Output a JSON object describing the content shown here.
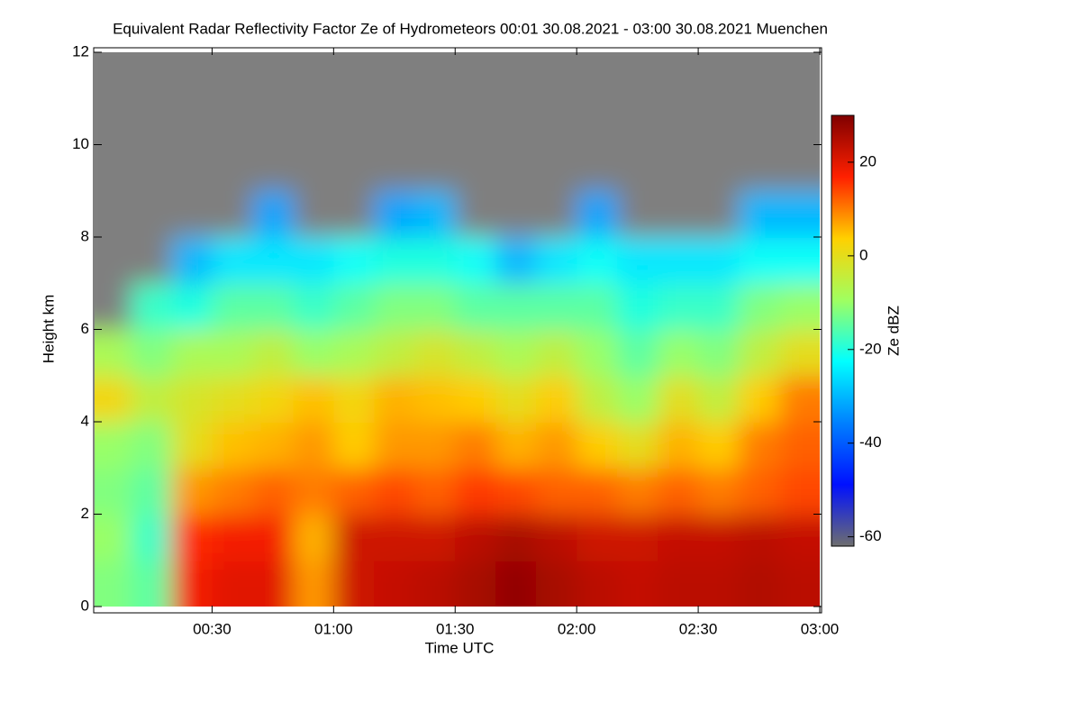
{
  "chart_data": {
    "type": "heatmap",
    "title": "Equivalent Radar Reflectivity Factor Ze of Hydrometeors   00:01 30.08.2021 - 03:00 30.08.2021 Muenchen",
    "x_label": "Time UTC",
    "y_label": "Height km",
    "colorbar_label": "Ze dBZ",
    "xlim": [
      1,
      180
    ],
    "xticks": [
      {
        "value": 30,
        "label": "00:30"
      },
      {
        "value": 60,
        "label": "01:00"
      },
      {
        "value": 90,
        "label": "01:30"
      },
      {
        "value": 120,
        "label": "02:00"
      },
      {
        "value": 150,
        "label": "02:30"
      },
      {
        "value": 180,
        "label": "03:00"
      }
    ],
    "ylim": [
      0,
      12
    ],
    "yticks": [
      0,
      2,
      4,
      6,
      8,
      10,
      12
    ],
    "clim": [
      -62,
      30
    ],
    "cticks": [
      -60,
      -40,
      -20,
      0,
      20
    ],
    "colormap": [
      "#6e6e6e",
      "#0010ff",
      "#0080ff",
      "#00ffff",
      "#a0ff60",
      "#ffd000",
      "#ff2000",
      "#800000"
    ],
    "missing_color": "#7f7f7f",
    "x": [
      5,
      15,
      25,
      35,
      45,
      55,
      65,
      75,
      85,
      95,
      105,
      115,
      125,
      135,
      145,
      155,
      165,
      175
    ],
    "y": [
      0.5,
      1.5,
      2.5,
      3.5,
      4.5,
      5.5,
      6.5,
      7.5,
      8.5,
      9.5,
      10.5,
      11.5
    ],
    "z": [
      [
        -12,
        -15,
        18,
        20,
        20,
        8,
        22,
        23,
        24,
        26,
        28,
        26,
        24,
        23,
        24,
        24,
        25,
        24
      ],
      [
        -10,
        -18,
        16,
        18,
        18,
        6,
        22,
        22,
        22,
        24,
        26,
        24,
        22,
        22,
        23,
        23,
        24,
        23
      ],
      [
        -12,
        -15,
        8,
        10,
        12,
        10,
        12,
        14,
        12,
        15,
        14,
        12,
        12,
        10,
        12,
        10,
        12,
        14
      ],
      [
        -10,
        -12,
        0,
        5,
        6,
        8,
        4,
        8,
        8,
        10,
        6,
        8,
        4,
        0,
        6,
        4,
        10,
        12
      ],
      [
        2,
        -5,
        -2,
        0,
        2,
        5,
        2,
        6,
        5,
        4,
        0,
        4,
        -5,
        -10,
        0,
        -5,
        4,
        10
      ],
      [
        -8,
        -12,
        -8,
        -8,
        -5,
        -10,
        -8,
        -5,
        -2,
        -5,
        -8,
        -5,
        -10,
        -15,
        -10,
        -12,
        -5,
        0
      ],
      [
        null,
        -18,
        -20,
        -15,
        -15,
        -18,
        -15,
        -12,
        -12,
        -15,
        -15,
        -15,
        -15,
        -20,
        -18,
        -18,
        -12,
        -10
      ],
      [
        null,
        null,
        -30,
        -25,
        -25,
        -25,
        -22,
        -20,
        -20,
        -22,
        -30,
        -25,
        -22,
        -25,
        -25,
        -25,
        -22,
        -22
      ],
      [
        null,
        null,
        null,
        null,
        -32,
        null,
        null,
        -32,
        -30,
        null,
        null,
        null,
        -32,
        null,
        null,
        null,
        -30,
        -30
      ],
      [
        null,
        null,
        null,
        null,
        null,
        null,
        null,
        null,
        null,
        null,
        null,
        null,
        null,
        null,
        null,
        null,
        null,
        null
      ],
      [
        null,
        null,
        null,
        null,
        null,
        null,
        null,
        null,
        null,
        null,
        null,
        null,
        null,
        null,
        null,
        null,
        null,
        null
      ],
      [
        null,
        null,
        null,
        null,
        null,
        null,
        null,
        null,
        null,
        null,
        null,
        null,
        null,
        null,
        null,
        null,
        null,
        null
      ]
    ]
  }
}
